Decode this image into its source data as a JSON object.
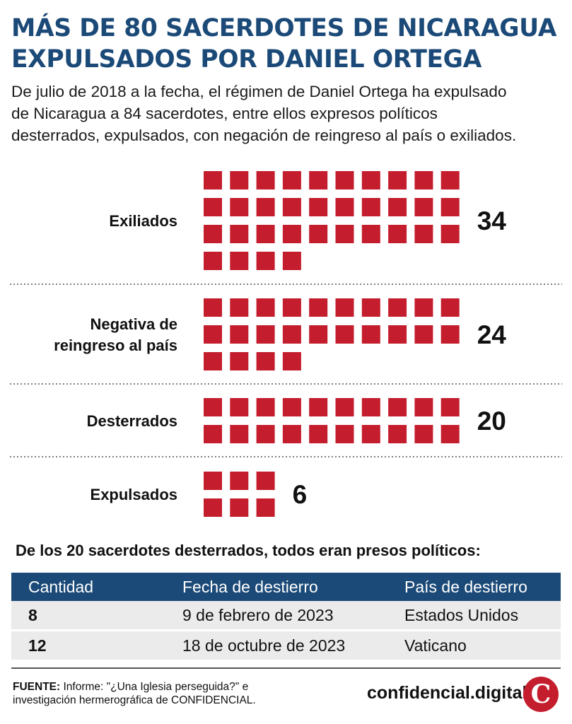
{
  "header": {
    "title_line1": "MÁS DE 80 SACERDOTES DE NICARAGUA",
    "title_line2": "EXPULSADOS POR DANIEL ORTEGA",
    "subtitle_line1": "De julio de 2018 a la fecha, el régimen de Daniel Ortega ha expulsado",
    "subtitle_line2": "de Nicaragua a 84 sacerdotes, entre ellos expresos políticos",
    "subtitle_line3": "desterrados, expulsados, con negación de reingreso al país o exiliados."
  },
  "chart_data": {
    "type": "waffle",
    "unit": "1 square = 1 sacerdote",
    "squares_per_row": 10,
    "square_color": "#c41e2e",
    "categories": [
      {
        "label_lines": [
          "Exiliados"
        ],
        "value": 34,
        "value_label": "34"
      },
      {
        "label_lines": [
          "Negativa de",
          "reingreso al país"
        ],
        "value": 24,
        "value_label": "24"
      },
      {
        "label_lines": [
          "Desterrados"
        ],
        "value": 20,
        "value_label": "20"
      },
      {
        "label_lines": [
          "Expulsados"
        ],
        "value": 6,
        "value_label": "6"
      }
    ],
    "expulsados_columns": 3,
    "total": 84
  },
  "table": {
    "heading": "De los 20 sacerdotes desterrados, todos eran presos políticos:",
    "columns": [
      "Cantidad",
      "Fecha de destierro",
      "País de destierro"
    ],
    "rows": [
      {
        "cantidad": "8",
        "fecha": "9 de febrero de 2023",
        "pais": "Estados Unidos"
      },
      {
        "cantidad": "12",
        "fecha": "18 de octubre de 2023",
        "pais": "Vaticano"
      }
    ]
  },
  "footer": {
    "source_label": "FUENTE:",
    "source_text_line1": " Informe: \"¿Una Iglesia perseguida?\" e",
    "source_text_line2": "investigación hermerográfica de CONFIDENCIAL.",
    "brand": "confidencial.digital",
    "logo_letter": "C"
  },
  "colors": {
    "title": "#1b4a78",
    "square": "#c41e2e",
    "table_header_bg": "#1b4a78",
    "table_row_bg": "#ebebeb",
    "logo_bg": "#c41e2e"
  }
}
